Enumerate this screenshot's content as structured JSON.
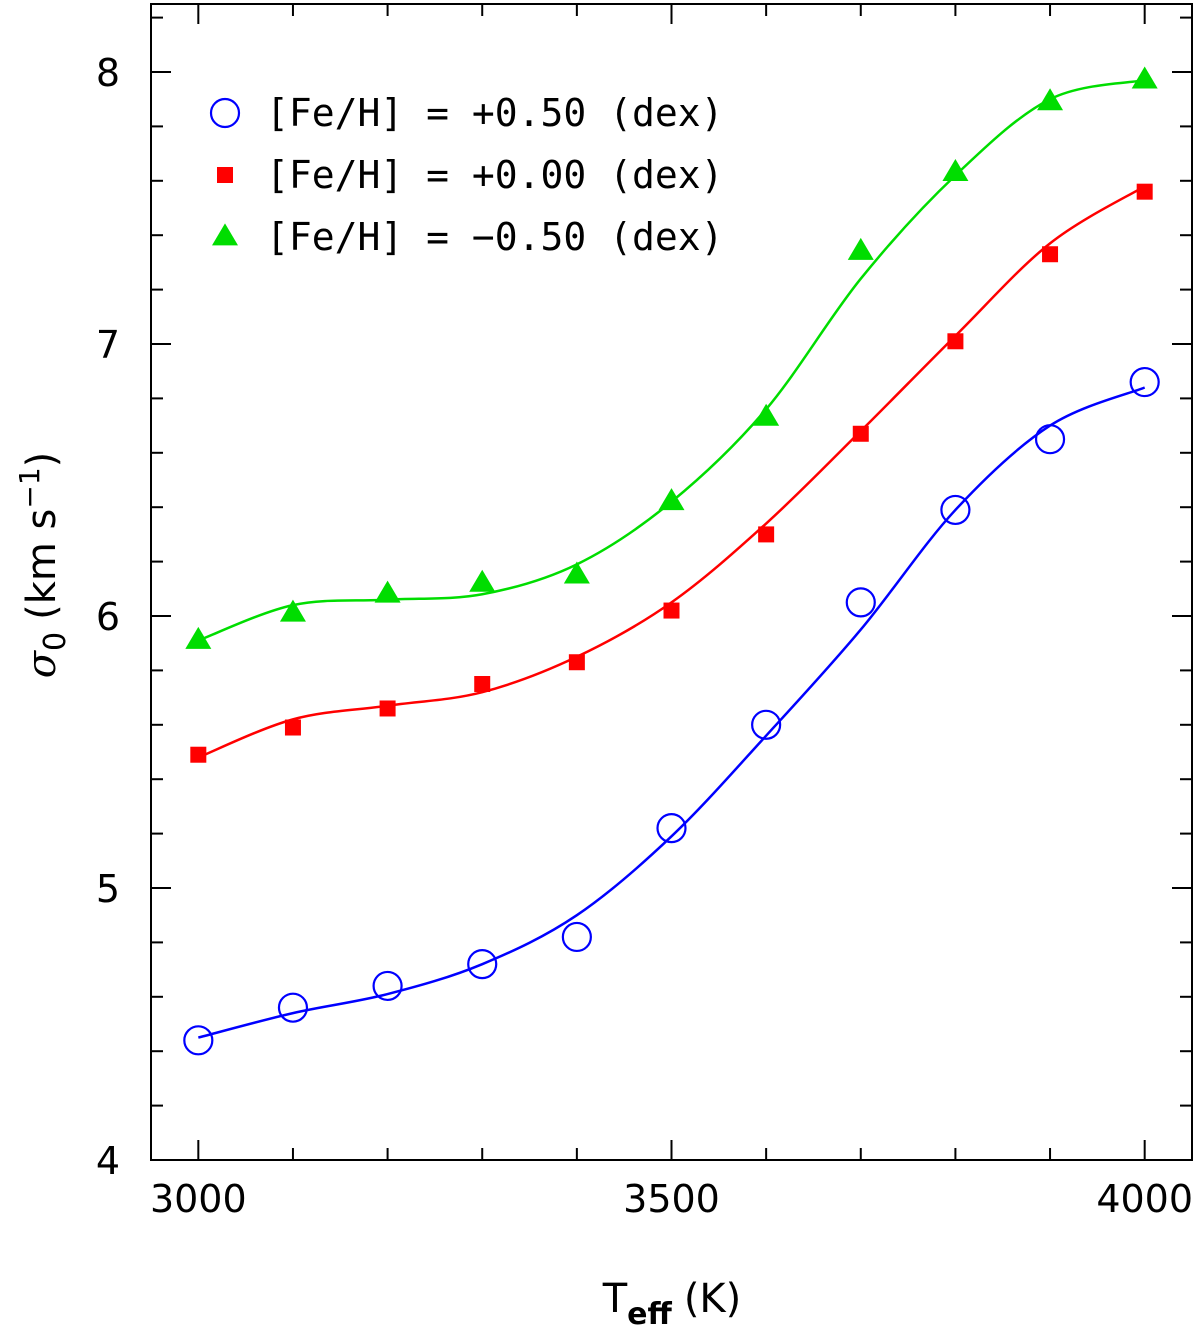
{
  "chart_data": {
    "type": "scatter",
    "xlabel": {
      "main": "T",
      "sub": "eff",
      "unit": "(K)"
    },
    "ylabel": {
      "main": "σ",
      "sub": "0",
      "unit": "(km s",
      "sup": "−1",
      "close": ")"
    },
    "xlim": [
      2950,
      4050
    ],
    "ylim": [
      4,
      8.25
    ],
    "x_ticks": [
      3000,
      3500,
      4000
    ],
    "y_ticks": [
      4,
      5,
      6,
      7,
      8
    ],
    "x_minor_step": 100,
    "y_minor_step": 0.2,
    "grid": false,
    "legend_position": "top-left",
    "x": [
      3000,
      3100,
      3200,
      3300,
      3400,
      3500,
      3600,
      3700,
      3800,
      3900,
      4000
    ],
    "series": [
      {
        "name": "[Fe/H] = +0.50 (dex)",
        "marker": "open-circle",
        "color": "#0000ff",
        "values": [
          4.44,
          4.56,
          4.64,
          4.72,
          4.82,
          5.22,
          5.6,
          6.05,
          6.39,
          6.65,
          6.86
        ],
        "fit": [
          4.45,
          4.54,
          4.61,
          4.72,
          4.9,
          5.19,
          5.56,
          5.95,
          6.39,
          6.7,
          6.84
        ]
      },
      {
        "name": "[Fe/H] = +0.00 (dex)",
        "marker": "filled-square",
        "color": "#ff0000",
        "values": [
          5.49,
          5.59,
          5.66,
          5.75,
          5.83,
          6.02,
          6.3,
          6.67,
          7.01,
          7.33,
          7.56
        ],
        "fit": [
          5.48,
          5.62,
          5.67,
          5.72,
          5.85,
          6.05,
          6.34,
          6.68,
          7.03,
          7.37,
          7.58
        ]
      },
      {
        "name": "[Fe/H] = −0.50 (dex)",
        "marker": "filled-triangle",
        "color": "#00dd00",
        "values": [
          5.91,
          6.01,
          6.08,
          6.12,
          6.15,
          6.42,
          6.73,
          7.34,
          7.63,
          7.89,
          7.97
        ],
        "fit": [
          5.91,
          6.04,
          6.06,
          6.08,
          6.19,
          6.42,
          6.76,
          7.24,
          7.62,
          7.9,
          7.97
        ]
      }
    ]
  }
}
